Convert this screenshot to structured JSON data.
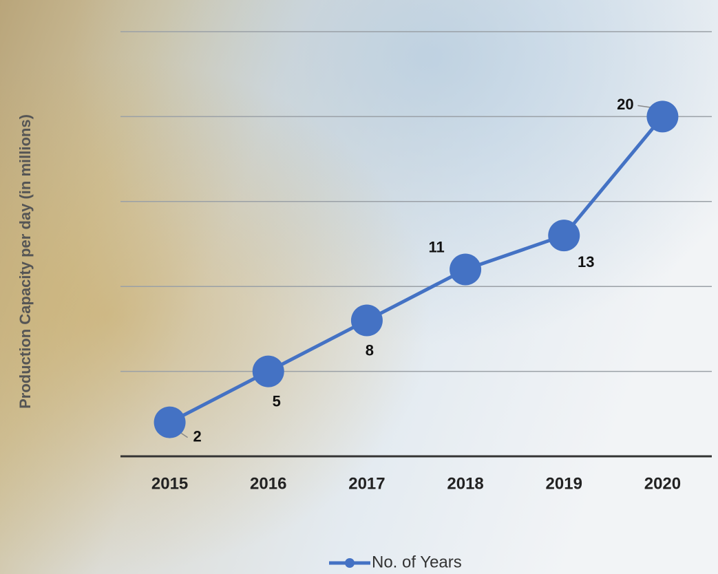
{
  "chart_data": {
    "type": "line",
    "y_axis_label": "Production Capacity per day (in millions)",
    "categories": [
      "2015",
      "2016",
      "2017",
      "2018",
      "2019",
      "2020"
    ],
    "series": [
      {
        "name": "No. of Years",
        "color": "#4472c4",
        "values": [
          2,
          5,
          8,
          11,
          13,
          20
        ]
      }
    ],
    "ylim": [
      0,
      25
    ],
    "yticks": [
      0,
      5,
      10,
      15,
      20,
      25
    ],
    "grid": true,
    "legend": "bottom"
  }
}
